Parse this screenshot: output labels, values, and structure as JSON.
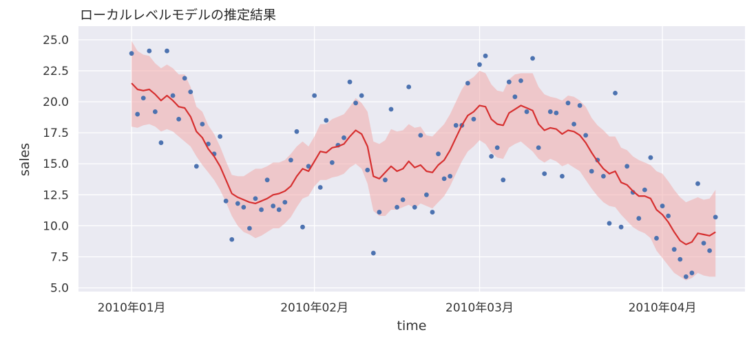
{
  "chart_data": {
    "type": "line",
    "title": "ローカルレベルモデルの推定結果",
    "xlabel": "time",
    "ylabel": "sales",
    "ylim": [
      4.7,
      26.1
    ],
    "xlim": [
      "2009-12-23",
      "2010-04-15"
    ],
    "y_ticks": [
      5.0,
      7.5,
      10.0,
      12.5,
      15.0,
      17.5,
      20.0,
      22.5,
      25.0
    ],
    "y_tick_labels": [
      "5.0",
      "7.5",
      "10.0",
      "12.5",
      "15.0",
      "17.5",
      "20.0",
      "22.5",
      "25.0"
    ],
    "x_ticks": [
      "2010-01-01",
      "2010-02-01",
      "2010-03-01",
      "2010-04-01"
    ],
    "x_tick_labels": [
      "2010年01月",
      "2010年02月",
      "2010年03月",
      "2010年04月"
    ],
    "grid": true,
    "legend": "none",
    "background": "#eaeaf2",
    "colors": {
      "points": "#4c72b0",
      "line": "#d62f2f",
      "band": "#f1a9a9"
    },
    "start_date": "2010-01-01",
    "series": [
      {
        "kind": "scatter",
        "values": [
          23.9,
          19.0,
          20.3,
          24.1,
          19.2,
          16.7,
          24.1,
          20.5,
          18.6,
          21.9,
          20.8,
          14.8,
          18.2,
          16.6,
          15.8,
          17.2,
          12.0,
          8.9,
          11.8,
          11.5,
          9.8,
          12.2,
          11.3,
          13.7,
          11.6,
          11.3,
          11.9,
          15.3,
          17.6,
          9.9,
          14.8,
          20.5,
          13.1,
          18.5,
          15.1,
          16.5,
          17.1,
          21.6,
          19.9,
          20.5,
          14.5,
          7.8,
          11.1,
          13.7,
          19.4,
          11.5,
          12.1,
          21.2,
          11.5,
          17.3,
          12.5,
          11.1,
          15.8,
          13.8,
          14.0,
          18.1,
          18.1,
          21.5,
          18.6,
          23.0,
          23.7,
          15.6,
          16.3,
          13.7,
          21.6,
          20.4,
          21.7,
          19.2,
          23.5,
          16.3,
          14.2,
          19.2,
          19.1,
          14.0,
          19.9,
          18.2,
          19.7,
          17.3,
          14.4,
          15.3,
          14.0,
          10.2,
          20.7,
          9.9,
          14.8,
          12.7,
          10.6,
          12.9,
          15.5,
          9.0,
          11.6,
          10.8,
          8.1,
          7.3,
          5.9,
          6.2,
          13.4,
          8.6,
          8.0,
          10.7
        ]
      },
      {
        "kind": "line",
        "values": [
          21.5,
          21.0,
          20.9,
          21.0,
          20.6,
          20.1,
          20.5,
          20.1,
          19.6,
          19.5,
          18.8,
          17.6,
          17.1,
          16.2,
          15.6,
          14.8,
          13.7,
          12.6,
          12.3,
          12.1,
          11.9,
          11.8,
          12.0,
          12.2,
          12.5,
          12.6,
          12.8,
          13.2,
          14.0,
          14.6,
          14.4,
          15.2,
          16.0,
          15.9,
          16.3,
          16.4,
          16.6,
          17.2,
          17.7,
          17.4,
          16.4,
          14.0,
          13.8,
          14.3,
          14.8,
          14.4,
          14.6,
          15.2,
          14.7,
          14.9,
          14.4,
          14.3,
          14.9,
          15.3,
          16.1,
          17.1,
          18.1,
          18.9,
          19.2,
          19.7,
          19.6,
          18.6,
          18.2,
          18.1,
          19.1,
          19.4,
          19.7,
          19.5,
          19.3,
          18.2,
          17.7,
          17.9,
          17.8,
          17.4,
          17.7,
          17.6,
          17.3,
          16.7,
          15.9,
          15.2,
          14.6,
          14.2,
          14.4,
          13.5,
          13.3,
          12.8,
          12.4,
          12.4,
          12.2,
          11.3,
          10.9,
          10.3,
          9.5,
          8.8,
          8.5,
          8.7,
          9.4,
          9.3,
          9.2,
          9.5
        ]
      },
      {
        "kind": "band",
        "lower": [
          18.0,
          17.9,
          18.1,
          18.2,
          18.0,
          17.6,
          17.8,
          17.6,
          17.2,
          16.8,
          16.4,
          15.6,
          14.9,
          14.3,
          13.7,
          12.9,
          11.9,
          10.8,
          10.0,
          9.5,
          9.3,
          9.0,
          9.2,
          9.5,
          9.8,
          9.8,
          10.2,
          10.7,
          11.5,
          12.2,
          12.4,
          13.2,
          13.7,
          13.7,
          13.9,
          14.0,
          14.2,
          14.7,
          15.0,
          14.6,
          13.4,
          11.2,
          10.8,
          10.8,
          11.3,
          11.3,
          11.5,
          11.7,
          11.4,
          11.8,
          11.6,
          11.4,
          11.9,
          12.4,
          13.2,
          14.2,
          15.2,
          16.0,
          16.4,
          16.9,
          16.6,
          15.9,
          15.5,
          15.4,
          16.3,
          16.6,
          16.8,
          16.4,
          16.0,
          15.4,
          15.1,
          15.4,
          15.2,
          14.8,
          15.0,
          14.7,
          14.4,
          13.7,
          13.0,
          12.4,
          11.9,
          11.6,
          11.5,
          10.9,
          10.4,
          9.9,
          9.6,
          9.4,
          9.0,
          8.0,
          7.4,
          6.8,
          6.2,
          5.9,
          5.6,
          5.8,
          6.2,
          6.0,
          5.9,
          5.9
        ],
        "upper": [
          24.9,
          24.1,
          23.8,
          23.7,
          23.1,
          22.7,
          23.0,
          22.7,
          22.2,
          22.2,
          21.2,
          19.6,
          19.2,
          18.1,
          17.4,
          16.4,
          15.2,
          14.1,
          14.0,
          14.0,
          14.3,
          14.6,
          14.6,
          14.8,
          15.1,
          15.1,
          15.3,
          15.8,
          16.4,
          16.8,
          16.4,
          17.2,
          18.2,
          18.2,
          18.6,
          18.8,
          19.0,
          19.6,
          20.3,
          19.9,
          19.2,
          16.8,
          16.6,
          16.9,
          17.8,
          17.6,
          17.7,
          18.2,
          17.9,
          18.0,
          17.3,
          17.2,
          17.7,
          18.2,
          19.0,
          20.0,
          21.0,
          21.7,
          22.0,
          22.5,
          22.3,
          21.4,
          20.9,
          20.8,
          21.8,
          22.2,
          22.3,
          22.3,
          22.3,
          21.2,
          20.6,
          20.4,
          20.3,
          20.1,
          20.5,
          20.4,
          20.1,
          19.6,
          18.7,
          18.1,
          17.7,
          17.2,
          17.2,
          16.3,
          16.1,
          15.6,
          15.3,
          15.1,
          14.9,
          14.4,
          14.2,
          13.6,
          12.9,
          12.3,
          11.9,
          12.1,
          12.3,
          12.1,
          12.2,
          12.9
        ]
      }
    ]
  }
}
